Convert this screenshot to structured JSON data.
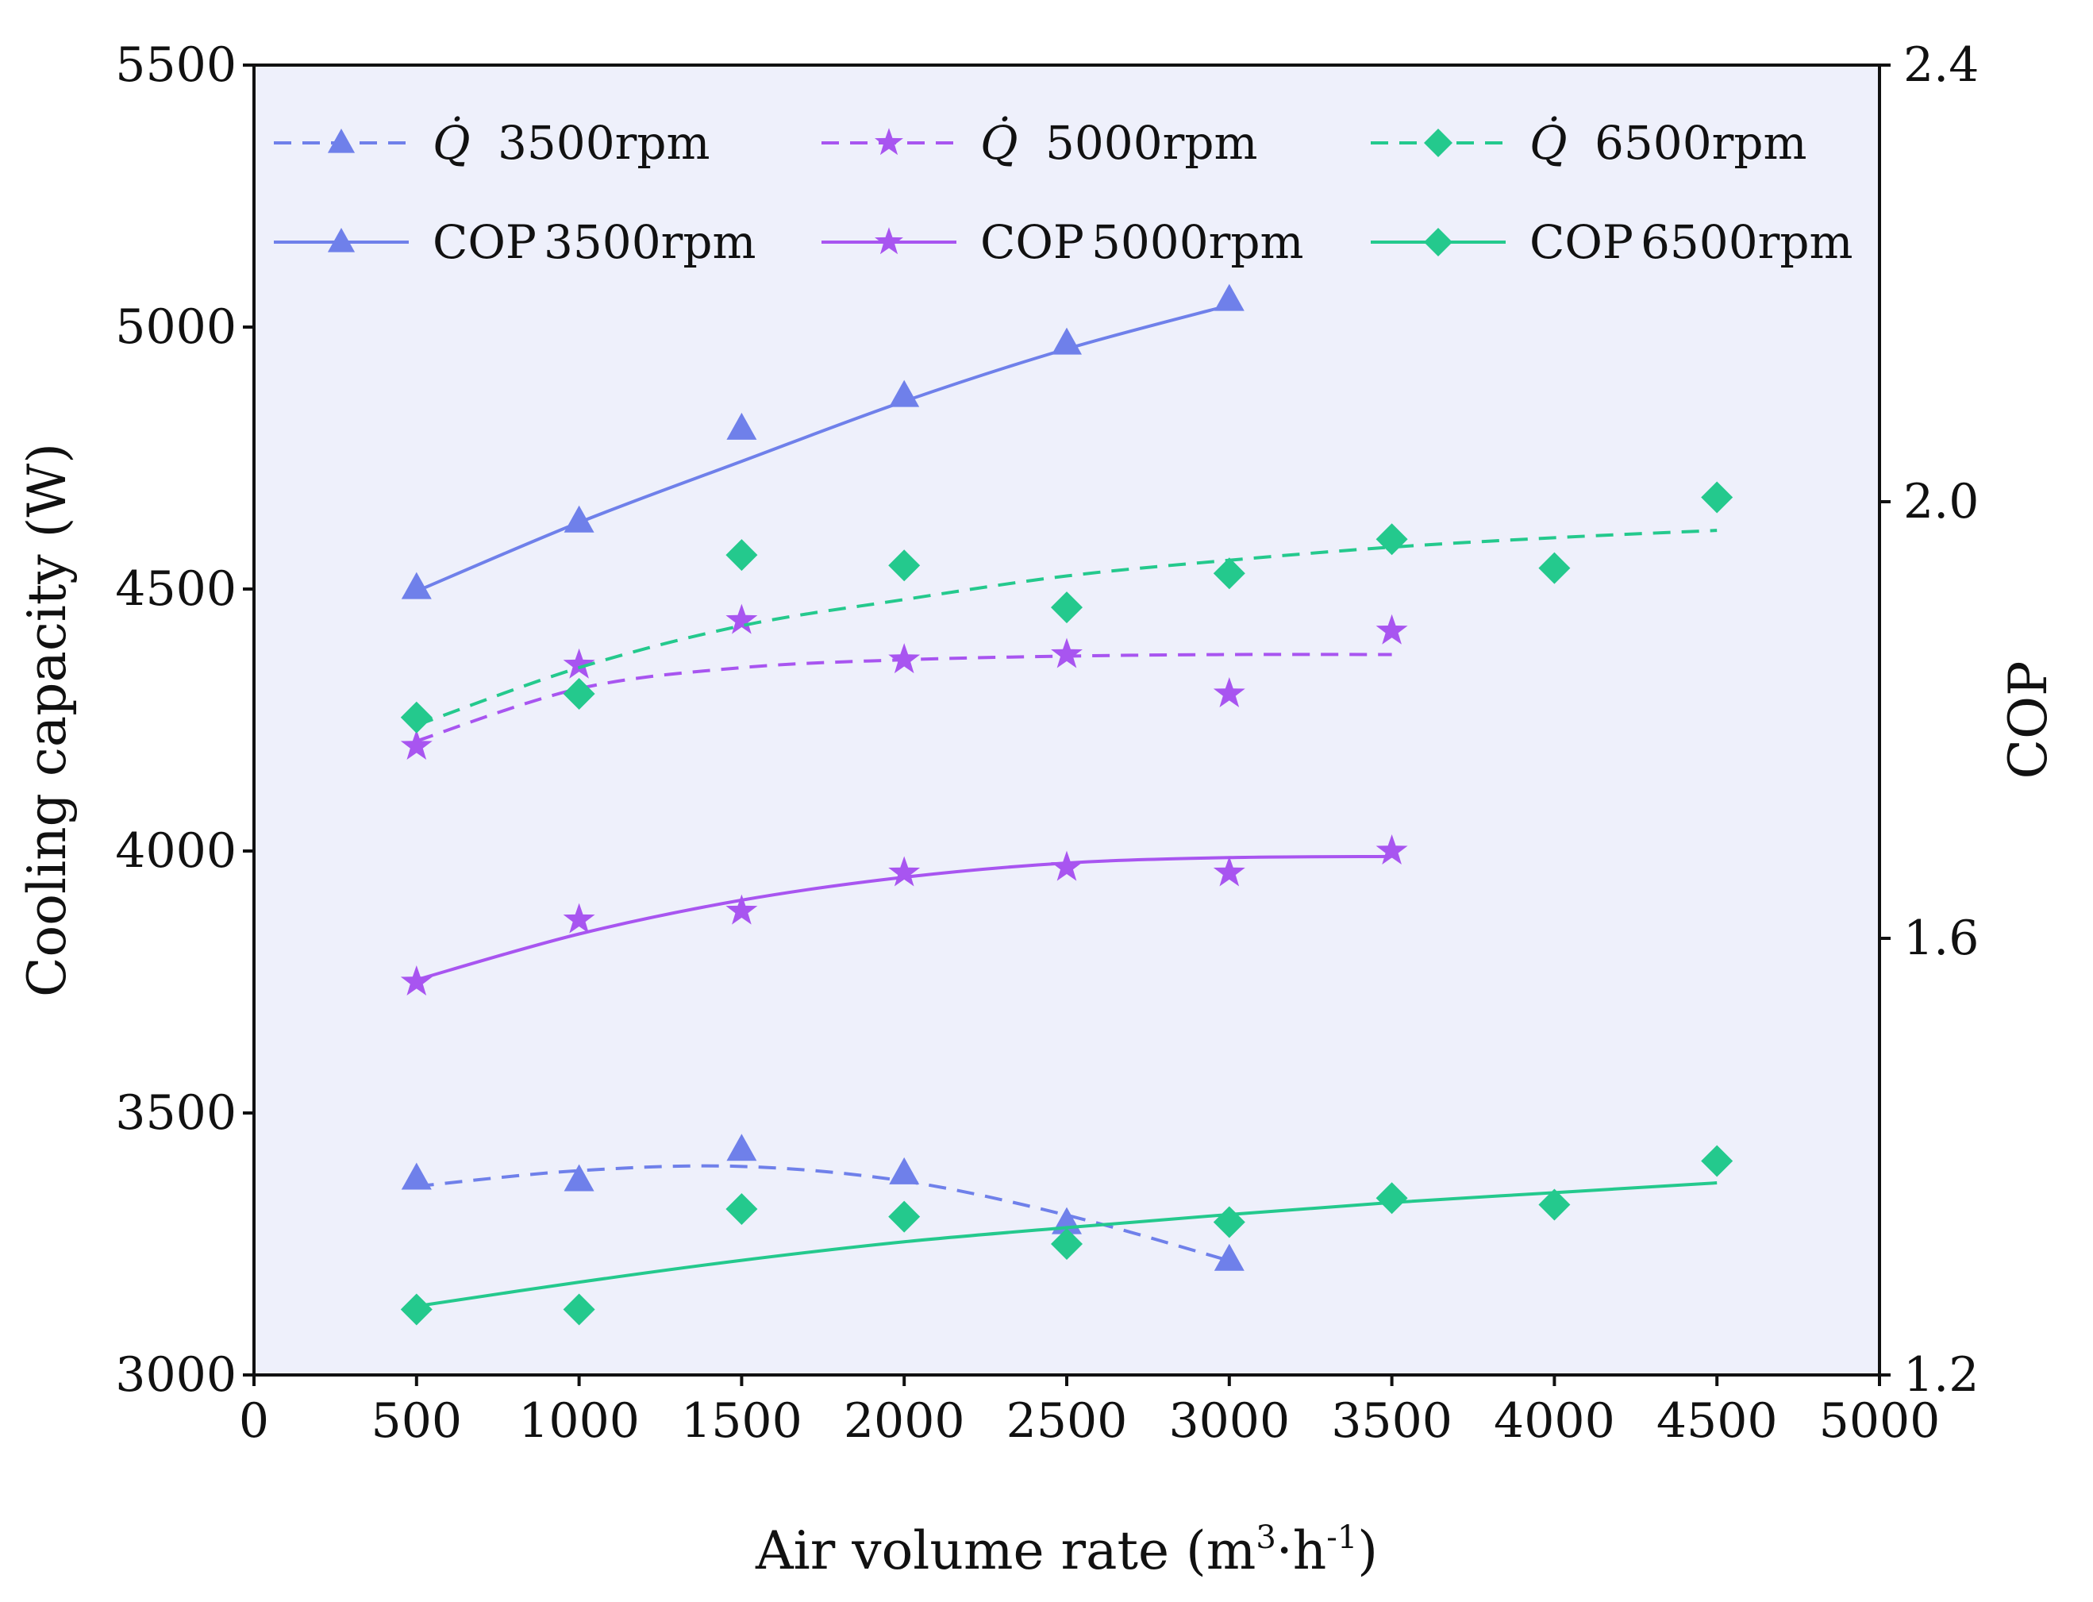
{
  "chart_data": {
    "type": "line",
    "x_axis": {
      "label_prefix": "Air volume rate (m",
      "label_sup1": "3",
      "label_mid": "·h",
      "label_sup2": "-1",
      "label_suffix": ")",
      "range": [
        0,
        5000
      ],
      "ticks": [
        "0",
        "500",
        "1000",
        "1500",
        "2000",
        "2500",
        "3000",
        "3500",
        "4000",
        "4500",
        "5000"
      ]
    },
    "y_axis_left": {
      "label": "Cooling capacity (W)",
      "range": [
        3000,
        5500
      ],
      "ticks": [
        "3000",
        "3500",
        "4000",
        "4500",
        "5000",
        "5500"
      ]
    },
    "y_axis_right": {
      "label": "COP",
      "range": [
        1.2,
        2.4
      ],
      "ticks": [
        "1.2",
        "1.6",
        "2.0",
        "2.4"
      ]
    },
    "legend": {
      "placement": "top",
      "entries": [
        {
          "series": "q3500",
          "symbol": "Q̇",
          "text": "3500rpm"
        },
        {
          "series": "q5000",
          "symbol": "Q̇",
          "text": "5000rpm"
        },
        {
          "series": "q6500",
          "symbol": "Q̇",
          "text": "6500rpm"
        },
        {
          "series": "cop3500",
          "symbol": "COP",
          "text": "3500rpm"
        },
        {
          "series": "cop5000",
          "symbol": "COP",
          "text": "5000rpm"
        },
        {
          "series": "cop6500",
          "symbol": "COP",
          "text": "6500rpm"
        }
      ]
    },
    "series": [
      {
        "id": "q3500",
        "name": "Q̇ 3500rpm",
        "axis": "left",
        "marker": "triangle",
        "dashed": true,
        "color": "#6f80ea",
        "x": [
          500,
          1000,
          1500,
          2000,
          2500,
          3000
        ],
        "values": [
          3375,
          3372,
          3430,
          3385,
          3290,
          3220
        ],
        "fit": [
          [
            500,
            3360
          ],
          [
            1000,
            3390
          ],
          [
            1500,
            3398
          ],
          [
            2000,
            3370
          ],
          [
            2500,
            3305
          ],
          [
            3000,
            3218
          ]
        ]
      },
      {
        "id": "q5000",
        "name": "Q̇ 5000rpm",
        "axis": "left",
        "marker": "star",
        "dashed": true,
        "color": "#a855f0",
        "x": [
          500,
          1000,
          1500,
          2000,
          2500,
          3000,
          3500
        ],
        "values": [
          4200,
          4355,
          4440,
          4365,
          4375,
          4300,
          4420
        ],
        "fit": [
          [
            500,
            4210
          ],
          [
            1000,
            4310
          ],
          [
            1500,
            4350
          ],
          [
            2000,
            4365
          ],
          [
            2500,
            4372
          ],
          [
            3000,
            4375
          ],
          [
            3500,
            4375
          ]
        ]
      },
      {
        "id": "q6500",
        "name": "Q̇ 6500rpm",
        "axis": "left",
        "marker": "diamond",
        "dashed": true,
        "color": "#24c98d",
        "x": [
          500,
          1000,
          1500,
          2000,
          2500,
          3000,
          3500,
          4000,
          4500
        ],
        "values": [
          4255,
          4300,
          4565,
          4545,
          4465,
          4530,
          4595,
          4540,
          4675
        ],
        "fit": [
          [
            500,
            4240
          ],
          [
            1000,
            4350
          ],
          [
            1500,
            4430
          ],
          [
            2000,
            4480
          ],
          [
            2500,
            4525
          ],
          [
            3000,
            4555
          ],
          [
            3500,
            4580
          ],
          [
            4000,
            4598
          ],
          [
            4500,
            4612
          ]
        ]
      },
      {
        "id": "cop3500",
        "name": "COP 3500rpm",
        "axis": "right",
        "marker": "triangle",
        "dashed": false,
        "color": "#6f80ea",
        "x": [
          500,
          1000,
          1500,
          2000,
          2500,
          3000
        ],
        "values": [
          1.921,
          1.982,
          2.067,
          2.097,
          2.145,
          2.185
        ],
        "fit": [
          [
            500,
            1.918
          ],
          [
            1000,
            1.981
          ],
          [
            1500,
            2.037
          ],
          [
            2000,
            2.092
          ],
          [
            2500,
            2.14
          ],
          [
            3000,
            2.18
          ]
        ]
      },
      {
        "id": "cop5000",
        "name": "COP 5000rpm",
        "axis": "right",
        "marker": "star",
        "dashed": false,
        "color": "#a855f0",
        "x": [
          500,
          1000,
          1500,
          2000,
          2500,
          3000,
          3500
        ],
        "values": [
          1.56,
          1.617,
          1.625,
          1.66,
          1.665,
          1.66,
          1.68
        ],
        "fit": [
          [
            500,
            1.562
          ],
          [
            1000,
            1.604
          ],
          [
            1500,
            1.635
          ],
          [
            2000,
            1.656
          ],
          [
            2500,
            1.669
          ],
          [
            3000,
            1.674
          ],
          [
            3500,
            1.675
          ]
        ]
      },
      {
        "id": "cop6500",
        "name": "COP 6500rpm",
        "axis": "right",
        "marker": "diamond",
        "dashed": false,
        "color": "#24c98d",
        "x": [
          500,
          1000,
          1500,
          2000,
          2500,
          3000,
          3500,
          4000,
          4500
        ],
        "values": [
          1.26,
          1.26,
          1.352,
          1.345,
          1.32,
          1.34,
          1.362,
          1.356,
          1.396
        ],
        "fit": [
          [
            500,
            1.263
          ],
          [
            1000,
            1.285
          ],
          [
            1500,
            1.305
          ],
          [
            2000,
            1.322
          ],
          [
            2500,
            1.335
          ],
          [
            3000,
            1.347
          ],
          [
            3500,
            1.358
          ],
          [
            4000,
            1.367
          ],
          [
            4500,
            1.376
          ]
        ]
      }
    ]
  }
}
